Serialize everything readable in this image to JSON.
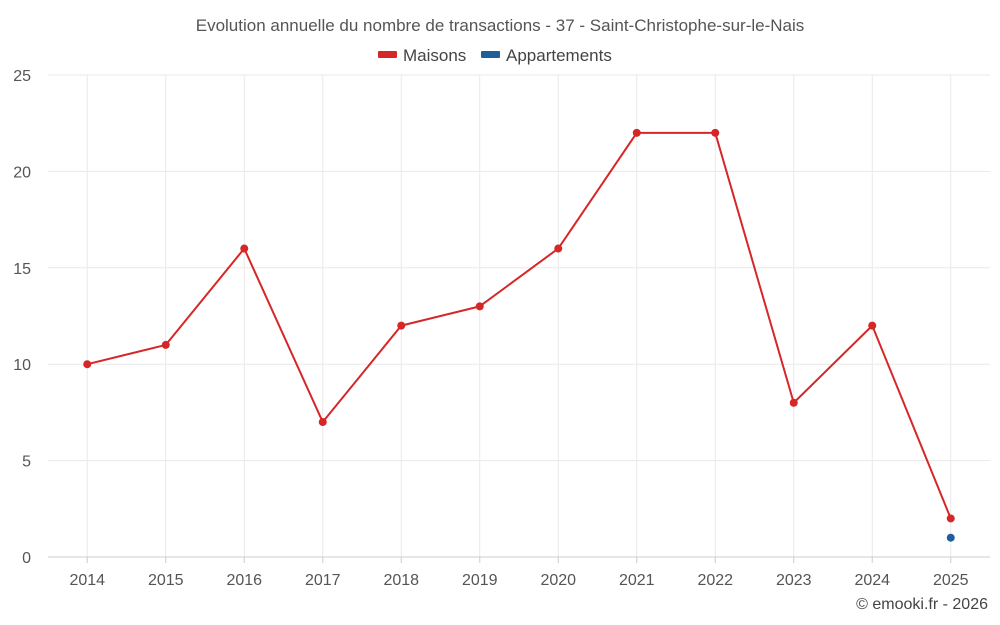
{
  "chart_data": {
    "type": "line",
    "title": "Evolution annuelle du nombre de transactions - 37 - Saint-Christophe-sur-le-Nais",
    "categories": [
      "2014",
      "2015",
      "2016",
      "2017",
      "2018",
      "2019",
      "2020",
      "2021",
      "2022",
      "2023",
      "2024",
      "2025"
    ],
    "series": [
      {
        "name": "Maisons",
        "color": "#d62728",
        "values": [
          10,
          11,
          16,
          7,
          12,
          13,
          16,
          22,
          22,
          8,
          12,
          2
        ]
      },
      {
        "name": "Appartements",
        "color": "#1f5f99",
        "values": [
          null,
          null,
          null,
          null,
          null,
          null,
          null,
          null,
          null,
          null,
          null,
          1
        ]
      }
    ],
    "ylim": [
      0,
      25
    ],
    "yticks": [
      "0",
      "5",
      "10",
      "15",
      "20",
      "25"
    ],
    "grid": true,
    "legend": "top-center",
    "xlabel": "",
    "ylabel": ""
  },
  "credit": "© emooki.fr - 2026"
}
